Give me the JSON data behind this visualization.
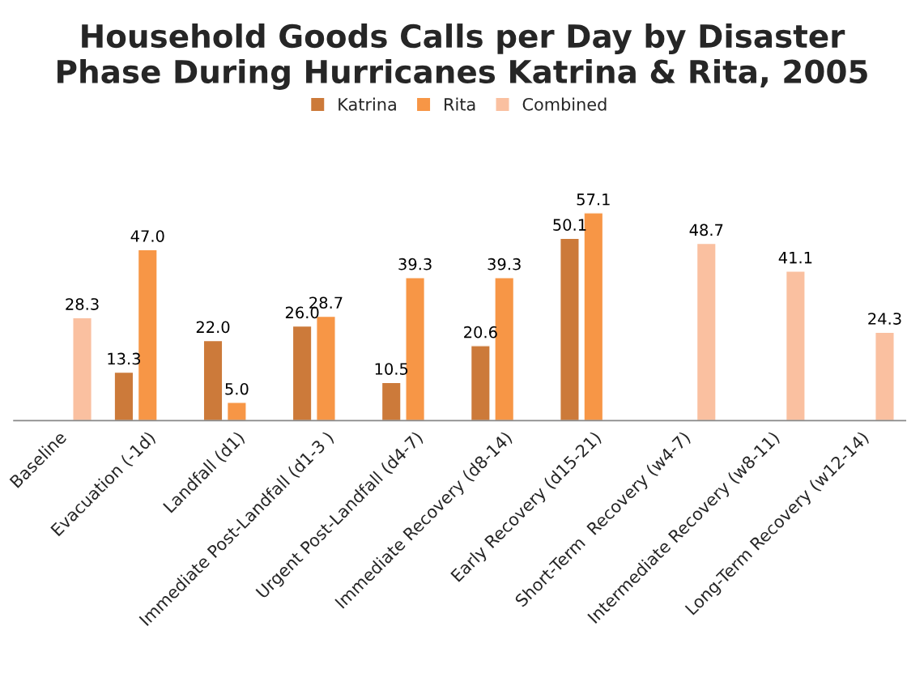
{
  "chart_data": {
    "type": "bar",
    "title": "Household Goods Calls per Day by Disaster\nPhase During Hurricanes Katrina & Rita, 2005",
    "categories": [
      "Baseline",
      "Evacuation (-1d)",
      "Landfall (d1)",
      "Immediate Post-Landfall (d1-3 )",
      "Urgent Post-Landfall (d4-7)",
      "Immediate Recovery (d8-14)",
      "Early Recovery (d15-21)",
      "Short-Term  Recovery (w4-7)",
      "Intermediate Recovery (w8-11)",
      "Long-Term Recovery (w12-14)"
    ],
    "series": [
      {
        "name": "Katrina",
        "color": "#cc7a3a",
        "values": [
          null,
          13.3,
          22,
          26,
          10.5,
          20.6,
          50.1,
          null,
          null,
          null
        ],
        "value_labels": [
          null,
          "13.3",
          "22.0",
          "26.0",
          "10.5",
          "20.6",
          "50.1",
          null,
          null,
          null
        ]
      },
      {
        "name": "Rita",
        "color": "#f79646",
        "values": [
          null,
          47,
          5,
          28.7,
          39.3,
          39.3,
          57.1,
          null,
          null,
          null
        ],
        "value_labels": [
          null,
          "47.0",
          "5.0",
          "28.7",
          "39.3",
          "39.3",
          "57.1",
          null,
          null,
          null
        ]
      },
      {
        "name": "Combined",
        "color": "#fac0a0",
        "values": [
          28.3,
          null,
          null,
          null,
          null,
          null,
          null,
          48.7,
          41.1,
          24.3
        ],
        "value_labels": [
          "28.3",
          null,
          null,
          null,
          null,
          null,
          null,
          "48.7",
          "41.1",
          "24.3"
        ]
      }
    ],
    "legend": "top"
  }
}
